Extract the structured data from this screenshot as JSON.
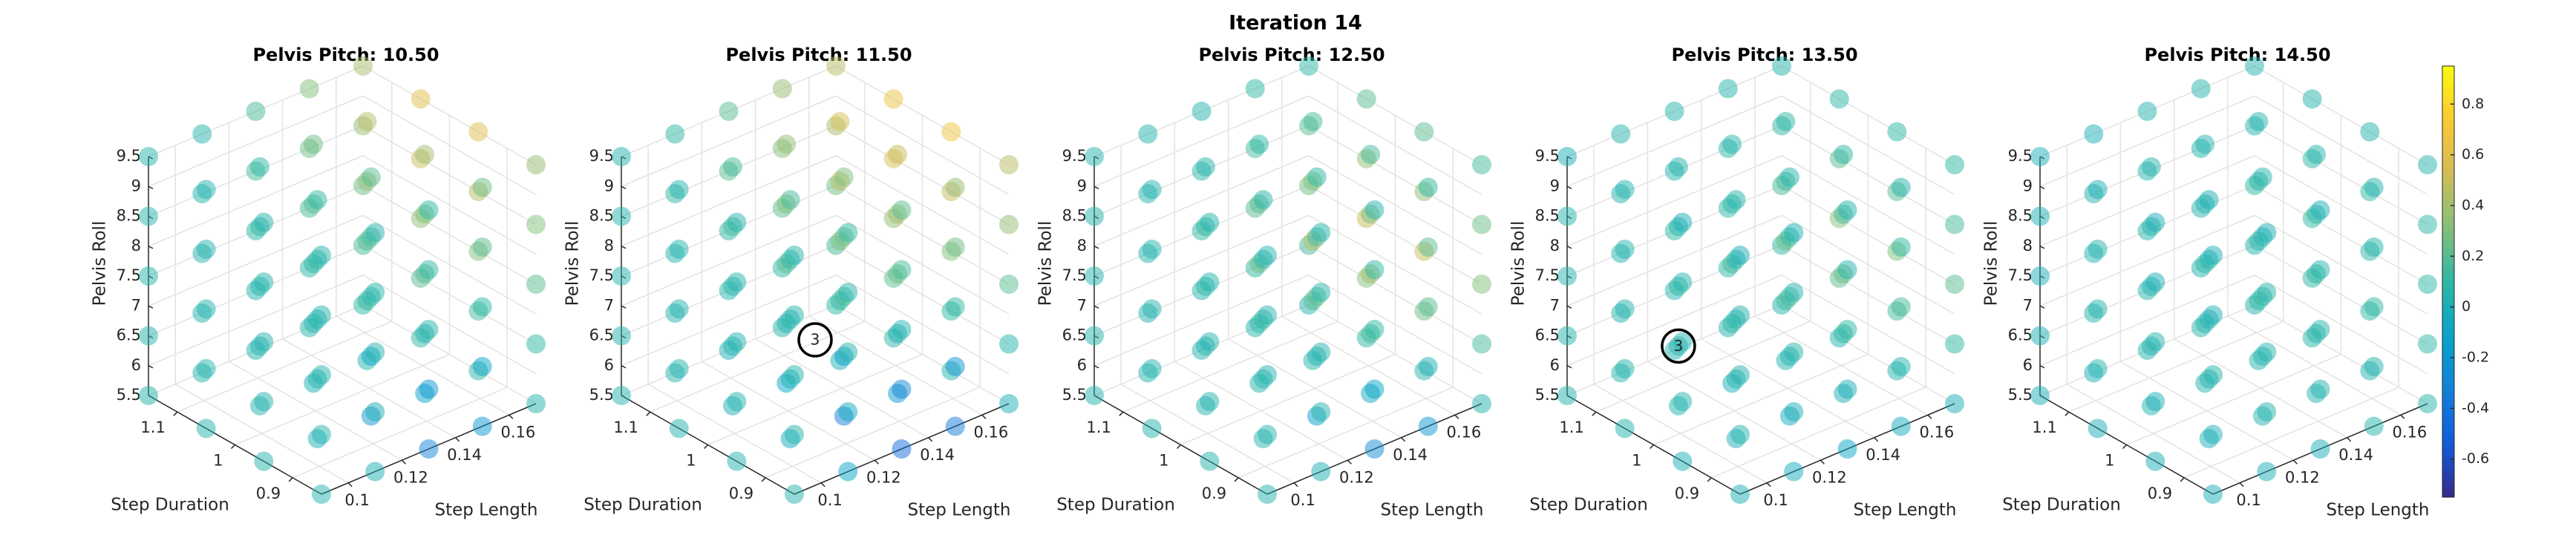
{
  "title": "Iteration 14",
  "colorbar": {
    "clim": [
      -0.75,
      0.95
    ],
    "ticks": [
      -0.6,
      -0.4,
      -0.2,
      0,
      0.2,
      0.4,
      0.6,
      0.8
    ],
    "colormap": "parula"
  },
  "chart_data": [
    {
      "type": "scatter3d",
      "title": "Pelvis Pitch: 10.50",
      "xlabel": "Step Length",
      "ylabel": "Step Duration",
      "zlabel": "Pelvis Roll",
      "xlim": [
        0.09,
        0.17
      ],
      "ylim": [
        0.85,
        1.15
      ],
      "zlim": [
        5.5,
        9.5
      ],
      "xticks": [
        0.1,
        0.12,
        0.14,
        0.16
      ],
      "yticks": [
        0.9,
        1,
        1.1
      ],
      "zticks": [
        5.5,
        6,
        6.5,
        7,
        7.5,
        8,
        8.5,
        9,
        9.5
      ],
      "grid": true,
      "x": [
        0.09,
        0.11,
        0.13,
        0.15,
        0.17
      ],
      "y": [
        0.85,
        0.95,
        1.05,
        1.15
      ],
      "z": [
        5.5,
        6.5,
        7.5,
        8.5,
        9.5
      ],
      "values": [
        [
          [
            0.05,
            0,
            -0.3,
            -0.2,
            0.05
          ],
          [
            0.05,
            0,
            -0.2,
            -0.1,
            0.1
          ],
          [
            0.05,
            0.05,
            0,
            0.05,
            0.1
          ],
          [
            0.05,
            0.05,
            0.05,
            0.05,
            0.1
          ]
        ],
        [
          [
            0.05,
            0,
            -0.2,
            -0.1,
            0.1
          ],
          [
            0.05,
            0.05,
            -0.1,
            0.05,
            0.15
          ],
          [
            0.05,
            0.05,
            0.05,
            0.1,
            0.2
          ],
          [
            0.05,
            0.05,
            0.05,
            0.1,
            0.15
          ]
        ],
        [
          [
            0.05,
            0.05,
            0.05,
            0.1,
            0.2
          ],
          [
            0.05,
            0.05,
            0.1,
            0.2,
            0.3
          ],
          [
            0.05,
            0.05,
            0.1,
            0.2,
            0.35
          ],
          [
            0.05,
            0.05,
            0.1,
            0.15,
            0.25
          ]
        ],
        [
          [
            0.05,
            0.05,
            0.1,
            0.2,
            0.3
          ],
          [
            0.05,
            0.1,
            0.15,
            0.3,
            0.45
          ],
          [
            0.05,
            0.1,
            0.2,
            0.35,
            0.5
          ],
          [
            0.05,
            0.05,
            0.15,
            0.25,
            0.35
          ]
        ],
        [
          [
            0.05,
            0.05,
            0.1,
            0.25,
            0.35
          ],
          [
            0.05,
            0.1,
            0.2,
            0.4,
            0.6
          ],
          [
            0.05,
            0.1,
            0.25,
            0.45,
            0.6
          ],
          [
            0.05,
            0.05,
            0.15,
            0.3,
            0.4
          ]
        ]
      ],
      "annotations": []
    },
    {
      "type": "scatter3d",
      "title": "Pelvis Pitch: 11.50",
      "xlabel": "Step Length",
      "ylabel": "Step Duration",
      "zlabel": "Pelvis Roll",
      "xlim": [
        0.09,
        0.17
      ],
      "ylim": [
        0.85,
        1.15
      ],
      "zlim": [
        5.5,
        9.5
      ],
      "xticks": [
        0.1,
        0.12,
        0.14,
        0.16
      ],
      "yticks": [
        0.9,
        1,
        1.1
      ],
      "zticks": [
        5.5,
        6,
        6.5,
        7,
        7.5,
        8,
        8.5,
        9,
        9.5
      ],
      "grid": true,
      "x": [
        0.09,
        0.11,
        0.13,
        0.15,
        0.17
      ],
      "y": [
        0.85,
        0.95,
        1.05,
        1.15
      ],
      "z": [
        5.5,
        6.5,
        7.5,
        8.5,
        9.5
      ],
      "values": [
        [
          [
            0.05,
            -0.1,
            -0.45,
            -0.35,
            0
          ],
          [
            0.05,
            -0.05,
            -0.35,
            -0.2,
            0.05
          ],
          [
            0.05,
            0,
            -0.1,
            0,
            0.1
          ],
          [
            0.05,
            0.05,
            0,
            0.05,
            0.1
          ]
        ],
        [
          [
            0.05,
            -0.05,
            -0.3,
            -0.2,
            0.05
          ],
          [
            0.05,
            0,
            -0.15,
            0,
            0.1
          ],
          [
            0.05,
            0.05,
            0.05,
            0.1,
            0.2
          ],
          [
            0.05,
            0.05,
            0.05,
            0.1,
            0.15
          ]
        ],
        [
          [
            0.05,
            0.05,
            0.05,
            0.1,
            0.2
          ],
          [
            0.05,
            0.05,
            0.15,
            0.25,
            0.3
          ],
          [
            0.05,
            0.1,
            0.2,
            0.3,
            0.35
          ],
          [
            0.05,
            0.05,
            0.1,
            0.2,
            0.25
          ]
        ],
        [
          [
            0.05,
            0.05,
            0.15,
            0.25,
            0.35
          ],
          [
            0.05,
            0.1,
            0.25,
            0.4,
            0.5
          ],
          [
            0.05,
            0.15,
            0.3,
            0.45,
            0.55
          ],
          [
            0.05,
            0.1,
            0.2,
            0.3,
            0.4
          ]
        ],
        [
          [
            0.05,
            0.1,
            0.2,
            0.35,
            0.45
          ],
          [
            0.05,
            0.15,
            0.3,
            0.5,
            0.65
          ],
          [
            0.05,
            0.15,
            0.35,
            0.55,
            0.65
          ],
          [
            0.05,
            0.1,
            0.2,
            0.35,
            0.45
          ]
        ]
      ],
      "annotations": [
        {
          "text": "3",
          "x": 0.13,
          "y": 1,
          "z": 6.5
        }
      ]
    },
    {
      "type": "scatter3d",
      "title": "Pelvis Pitch: 12.50",
      "xlabel": "Step Length",
      "ylabel": "Step Duration",
      "zlabel": "Pelvis Roll",
      "xlim": [
        0.09,
        0.17
      ],
      "ylim": [
        0.85,
        1.15
      ],
      "zlim": [
        5.5,
        9.5
      ],
      "xticks": [
        0.1,
        0.12,
        0.14,
        0.16
      ],
      "yticks": [
        0.9,
        1,
        1.1
      ],
      "zticks": [
        5.5,
        6,
        6.5,
        7,
        7.5,
        8,
        8.5,
        9,
        9.5
      ],
      "grid": true,
      "x": [
        0.09,
        0.11,
        0.13,
        0.15,
        0.17
      ],
      "y": [
        0.85,
        0.95,
        1.05,
        1.15
      ],
      "z": [
        5.5,
        6.5,
        7.5,
        8.5,
        9.5
      ],
      "values": [
        [
          [
            0.05,
            0,
            -0.25,
            -0.2,
            0.05
          ],
          [
            0.05,
            0.05,
            -0.15,
            -0.05,
            0.1
          ],
          [
            0.05,
            0.05,
            0.05,
            0.05,
            0.1
          ],
          [
            0.05,
            0.05,
            0.05,
            0.05,
            0.05
          ]
        ],
        [
          [
            0.05,
            0.05,
            -0.1,
            0,
            0.15
          ],
          [
            0.05,
            0.05,
            0.05,
            0.15,
            0.25
          ],
          [
            0.05,
            0.05,
            0.1,
            0.2,
            0.3
          ],
          [
            0.05,
            0.05,
            0.05,
            0.1,
            0.15
          ]
        ],
        [
          [
            0.05,
            0.05,
            0.1,
            0.2,
            0.3
          ],
          [
            0.05,
            0.1,
            0.2,
            0.4,
            0.5
          ],
          [
            0.05,
            0.1,
            0.25,
            0.45,
            0.5
          ],
          [
            0.05,
            0.05,
            0.1,
            0.2,
            0.25
          ]
        ],
        [
          [
            0.05,
            0.05,
            0.1,
            0.2,
            0.25
          ],
          [
            0.05,
            0.05,
            0.15,
            0.3,
            0.35
          ],
          [
            0.05,
            0.1,
            0.2,
            0.3,
            0.35
          ],
          [
            0.05,
            0.05,
            0.1,
            0.15,
            0.2
          ]
        ],
        [
          [
            0.05,
            0.05,
            0.05,
            0.1,
            0.15
          ],
          [
            0.05,
            0.05,
            0.1,
            0.15,
            0.2
          ],
          [
            0.05,
            0.05,
            0.1,
            0.15,
            0.2
          ],
          [
            0.05,
            0.05,
            0.05,
            0.1,
            0.1
          ]
        ]
      ],
      "annotations": []
    },
    {
      "type": "scatter3d",
      "title": "Pelvis Pitch: 13.50",
      "xlabel": "Step Length",
      "ylabel": "Step Duration",
      "zlabel": "Pelvis Roll",
      "xlim": [
        0.09,
        0.17
      ],
      "ylim": [
        0.85,
        1.15
      ],
      "zlim": [
        5.5,
        9.5
      ],
      "xticks": [
        0.1,
        0.12,
        0.14,
        0.16
      ],
      "yticks": [
        0.9,
        1,
        1.1
      ],
      "zticks": [
        5.5,
        6,
        6.5,
        7,
        7.5,
        8,
        8.5,
        9,
        9.5
      ],
      "grid": true,
      "x": [
        0.09,
        0.11,
        0.13,
        0.15,
        0.17
      ],
      "y": [
        0.85,
        0.95,
        1.05,
        1.15
      ],
      "z": [
        5.5,
        6.5,
        7.5,
        8.5,
        9.5
      ],
      "values": [
        [
          [
            0,
            -0.05,
            -0.1,
            -0.05,
            0
          ],
          [
            0,
            0,
            -0.05,
            0,
            0.05
          ],
          [
            0.05,
            0.05,
            0,
            0.05,
            0.05
          ],
          [
            0.05,
            0.05,
            0.05,
            0.05,
            0.05
          ]
        ],
        [
          [
            0.05,
            0,
            0,
            0.05,
            0.1
          ],
          [
            0.05,
            0.05,
            0.05,
            0.1,
            0.15
          ],
          [
            0.05,
            0.05,
            0.1,
            0.15,
            0.2
          ],
          [
            0.05,
            0.05,
            0.05,
            0.1,
            0.1
          ]
        ],
        [
          [
            0.05,
            0.05,
            0.1,
            0.15,
            0.2
          ],
          [
            0.05,
            0.05,
            0.15,
            0.25,
            0.3
          ],
          [
            0.05,
            0.1,
            0.15,
            0.25,
            0.3
          ],
          [
            0.05,
            0.05,
            0.1,
            0.1,
            0.15
          ]
        ],
        [
          [
            0.05,
            0.05,
            0.05,
            0.1,
            0.15
          ],
          [
            0.05,
            0.05,
            0.1,
            0.15,
            0.2
          ],
          [
            0.05,
            0.05,
            0.1,
            0.15,
            0.2
          ],
          [
            0.05,
            0.05,
            0.05,
            0.1,
            0.1
          ]
        ],
        [
          [
            0,
            0,
            0.05,
            0.05,
            0.1
          ],
          [
            0,
            0.05,
            0.05,
            0.1,
            0.1
          ],
          [
            0.05,
            0.05,
            0.05,
            0.1,
            0.1
          ],
          [
            0,
            0.05,
            0.05,
            0.05,
            0.05
          ]
        ]
      ],
      "annotations": [
        {
          "text": "3",
          "x": 0.11,
          "y": 1.05,
          "z": 6.5
        }
      ]
    },
    {
      "type": "scatter3d",
      "title": "Pelvis Pitch: 14.50",
      "xlabel": "Step Length",
      "ylabel": "Step Duration",
      "zlabel": "Pelvis Roll",
      "xlim": [
        0.09,
        0.17
      ],
      "ylim": [
        0.85,
        1.15
      ],
      "zlim": [
        5.5,
        9.5
      ],
      "xticks": [
        0.1,
        0.12,
        0.14,
        0.16
      ],
      "yticks": [
        0.9,
        1,
        1.1
      ],
      "zticks": [
        5.5,
        6,
        6.5,
        7,
        7.5,
        8,
        8.5,
        9,
        9.5
      ],
      "grid": true,
      "x": [
        0.09,
        0.11,
        0.13,
        0.15,
        0.17
      ],
      "y": [
        0.85,
        0.95,
        1.05,
        1.15
      ],
      "z": [
        5.5,
        6.5,
        7.5,
        8.5,
        9.5
      ],
      "values": [
        [
          [
            0,
            0,
            0,
            0.05,
            0.05
          ],
          [
            0,
            0,
            0.05,
            0.05,
            0.05
          ],
          [
            0,
            0.05,
            0.05,
            0.05,
            0.05
          ],
          [
            0,
            0,
            0.05,
            0.05,
            0.05
          ]
        ],
        [
          [
            0,
            0.05,
            0.05,
            0.05,
            0.1
          ],
          [
            0,
            0.05,
            0.05,
            0.1,
            0.1
          ],
          [
            0.05,
            0.05,
            0.05,
            0.1,
            0.1
          ],
          [
            0,
            0.05,
            0.05,
            0.05,
            0.05
          ]
        ],
        [
          [
            0.05,
            0.05,
            0.05,
            0.1,
            0.1
          ],
          [
            0.05,
            0.05,
            0.1,
            0.1,
            0.1
          ],
          [
            0.05,
            0.05,
            0.1,
            0.1,
            0.1
          ],
          [
            0,
            0.05,
            0.05,
            0.05,
            0.1
          ]
        ],
        [
          [
            0,
            0.05,
            0.05,
            0.05,
            0.1
          ],
          [
            0,
            0.05,
            0.05,
            0.1,
            0.1
          ],
          [
            0.05,
            0.05,
            0.05,
            0.1,
            0.1
          ],
          [
            0,
            0.05,
            0.05,
            0.05,
            0.05
          ]
        ],
        [
          [
            0,
            0,
            0,
            0.05,
            0.05
          ],
          [
            0,
            0,
            0.05,
            0.05,
            0.05
          ],
          [
            0,
            0.05,
            0.05,
            0.05,
            0.05
          ],
          [
            0,
            0,
            0.05,
            0.05,
            0.05
          ]
        ]
      ],
      "annotations": []
    }
  ]
}
